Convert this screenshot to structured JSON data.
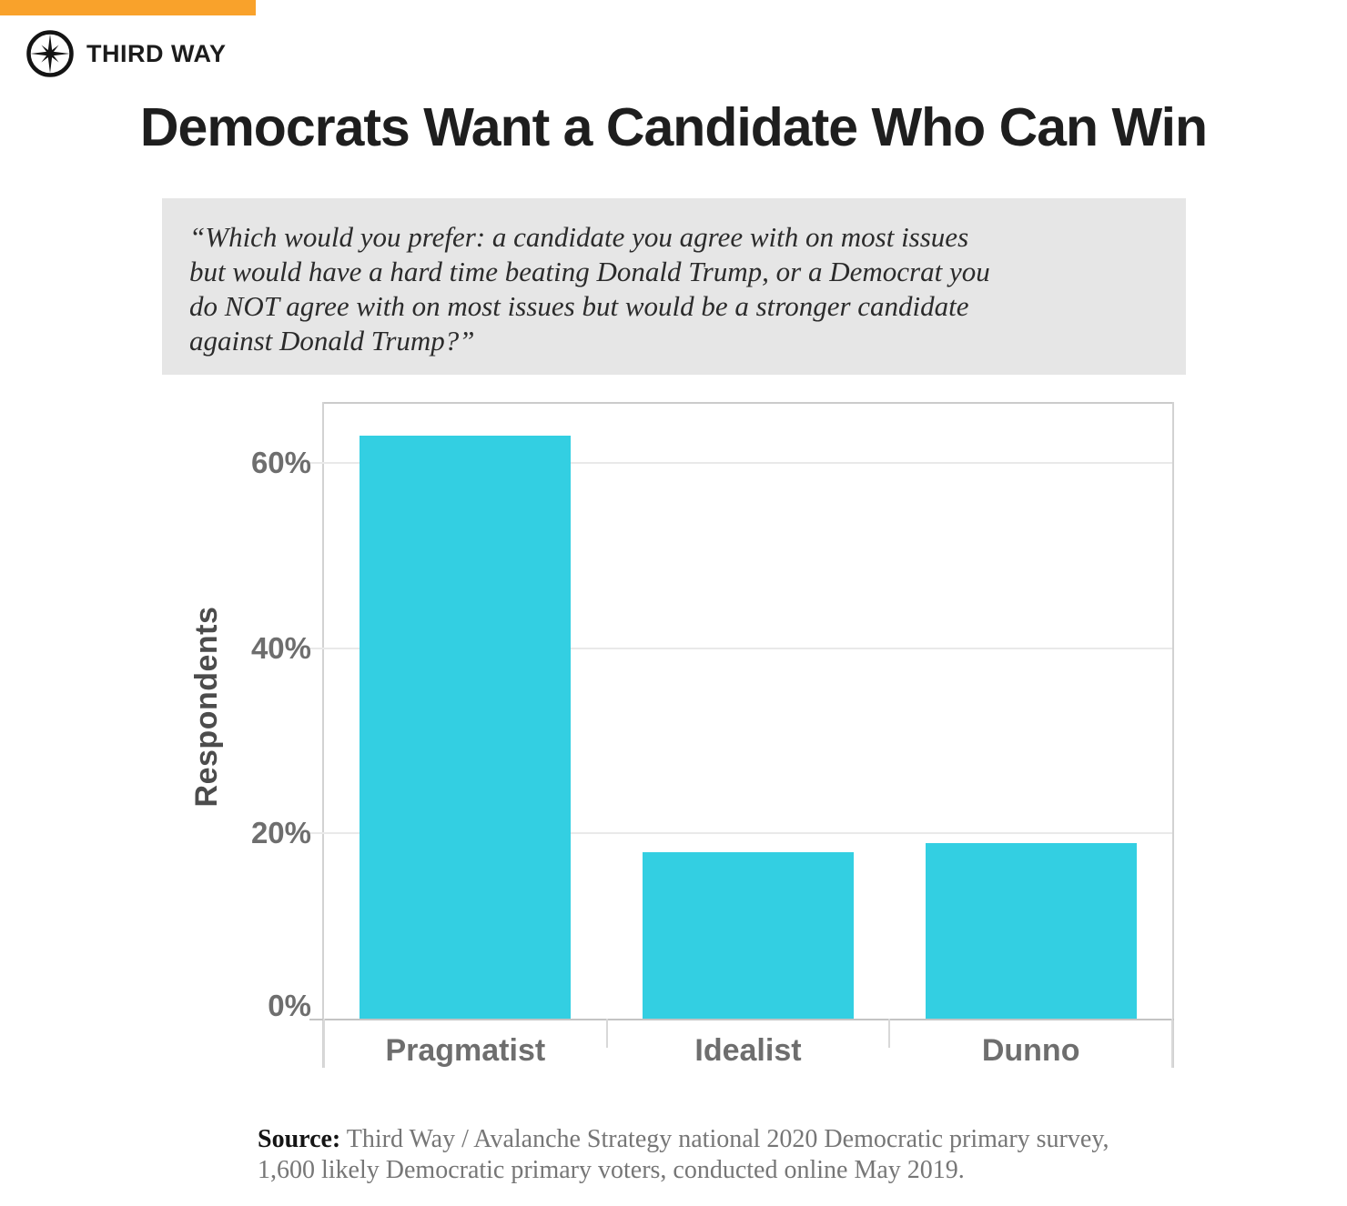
{
  "brand": {
    "top_bar_color": "#F9A22B",
    "logo_icon": "compass-icon",
    "logo_text": "THIRD WAY"
  },
  "title": "Democrats Want a Candidate Who Can Win",
  "question_box": {
    "background": "#e6e6e6",
    "lines": [
      "“Which would you prefer: a candidate you agree with on most issues",
      "but would have a hard time beating Donald Trump, or a Democrat you",
      "do NOT agree with on most issues but would be a stronger candidate",
      "against Donald Trump?”"
    ]
  },
  "chart_data": {
    "type": "bar",
    "categories": [
      "Pragmatist",
      "Idealist",
      "Dunno"
    ],
    "values": [
      63,
      18,
      19
    ],
    "title": "",
    "xlabel": "",
    "ylabel": "Respondents",
    "ylim": [
      0,
      66.4
    ],
    "yticks": [
      0,
      20,
      40,
      60
    ],
    "ytick_suffix": "%",
    "bar_color": "#33CFE2",
    "grid": true,
    "legend": false
  },
  "source": {
    "label": "Source:",
    "line1": "Third Way / Avalanche Strategy national 2020 Democratic primary survey,",
    "line2": "1,600 likely Democratic primary voters, conducted online May 2019."
  }
}
